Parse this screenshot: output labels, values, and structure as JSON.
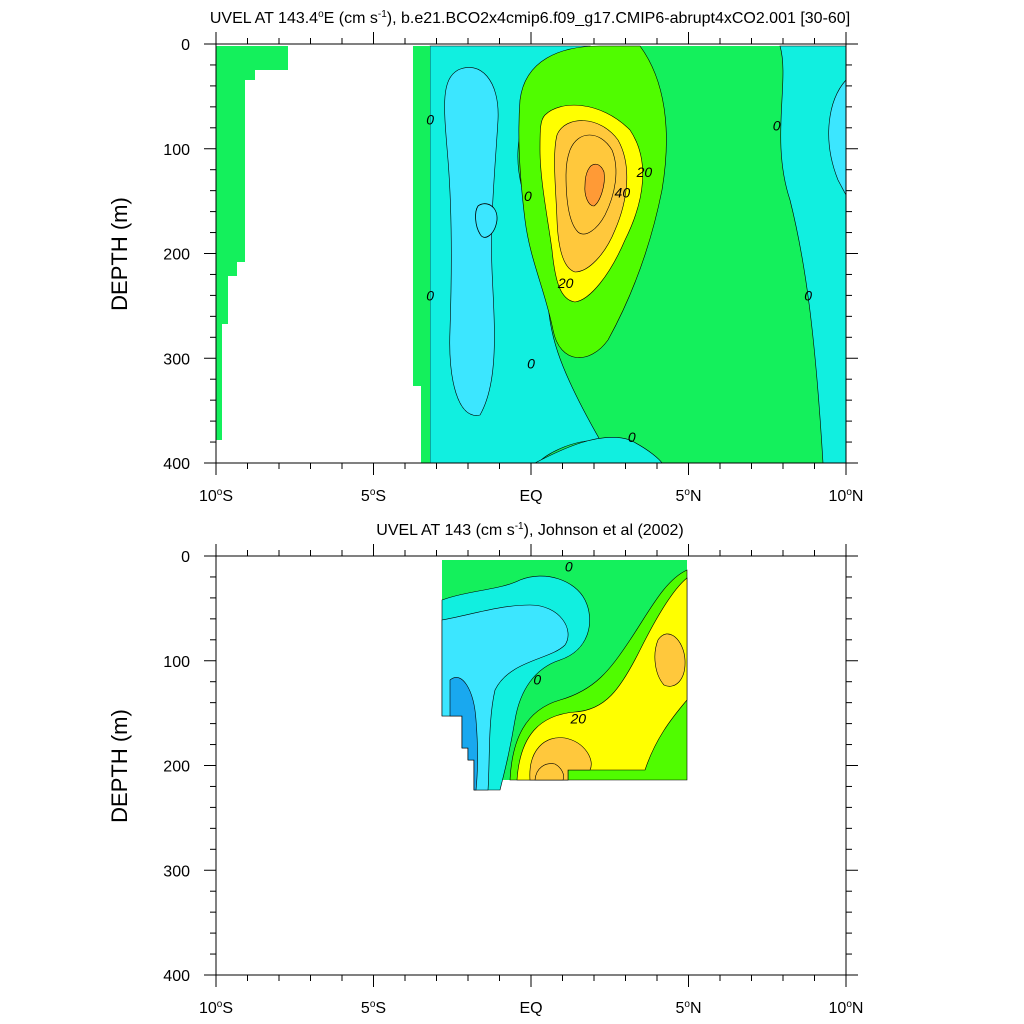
{
  "chart_data": [
    {
      "type": "contour",
      "title_parts": [
        "UVEL AT 143.4",
        "o",
        "E (cm s",
        "-1",
        "), b.e21.BCO2x4cmip6.f09_g17.CMIP6-abrupt4xCO2.001 [30-60]"
      ],
      "ylabel": "DEPTH (m)",
      "xlim": [
        -10,
        10
      ],
      "ylim": [
        0,
        400
      ],
      "y_inverted": true,
      "x_ticks": [
        {
          "value": -10,
          "label": "10",
          "sup": "o",
          "suffix": "S"
        },
        {
          "value": -5,
          "label": "5",
          "sup": "o",
          "suffix": "S"
        },
        {
          "value": 0,
          "label": "EQ",
          "sup": "",
          "suffix": ""
        },
        {
          "value": 5,
          "label": "5",
          "sup": "o",
          "suffix": "N"
        },
        {
          "value": 10,
          "label": "10",
          "sup": "o",
          "suffix": "N"
        }
      ],
      "y_ticks": [
        0,
        100,
        200,
        300,
        400
      ],
      "contour_levels": [
        -20,
        -10,
        0,
        10,
        20,
        30,
        40,
        50
      ],
      "contour_labels": [
        {
          "x": -3.2,
          "y": 72,
          "text": "0"
        },
        {
          "x": -3.2,
          "y": 240,
          "text": "0"
        },
        {
          "x": -0.1,
          "y": 145,
          "text": "0"
        },
        {
          "x": 0.0,
          "y": 305,
          "text": "0"
        },
        {
          "x": 3.2,
          "y": 375,
          "text": "0"
        },
        {
          "x": 7.8,
          "y": 78,
          "text": "0"
        },
        {
          "x": 8.8,
          "y": 240,
          "text": "0"
        },
        {
          "x": 3.6,
          "y": 122,
          "text": "20"
        },
        {
          "x": 1.1,
          "y": 228,
          "text": "20"
        },
        {
          "x": 2.9,
          "y": 142,
          "text": "40"
        }
      ],
      "field": {
        "description": "Zonal velocity section, eastward undercurrent core near 2N, 130-150 m",
        "core": {
          "lat": 2.0,
          "depth": 140,
          "value": 50
        }
      }
    },
    {
      "type": "contour",
      "title_parts": [
        "UVEL AT 143 (cm s",
        "-1",
        "), Johnson et al (2002)"
      ],
      "ylabel": "DEPTH (m)",
      "xlim": [
        -10,
        10
      ],
      "ylim": [
        0,
        400
      ],
      "y_inverted": true,
      "x_ticks": [
        {
          "value": -10,
          "label": "10",
          "sup": "o",
          "suffix": "S"
        },
        {
          "value": -5,
          "label": "5",
          "sup": "o",
          "suffix": "S"
        },
        {
          "value": 0,
          "label": "EQ",
          "sup": "",
          "suffix": ""
        },
        {
          "value": 5,
          "label": "5",
          "sup": "o",
          "suffix": "N"
        },
        {
          "value": 10,
          "label": "10",
          "sup": "o",
          "suffix": "N"
        }
      ],
      "y_ticks": [
        0,
        100,
        200,
        300,
        400
      ],
      "data_extent": {
        "lat": [
          -2.8,
          5.0
        ],
        "depth": [
          0,
          225
        ]
      },
      "contour_labels": [
        {
          "x": 1.2,
          "y": 10,
          "text": "0"
        },
        {
          "x": 0.2,
          "y": 118,
          "text": "0"
        },
        {
          "x": 1.5,
          "y": 155,
          "text": "20"
        }
      ],
      "field": {
        "description": "Observed zonal velocity, westward near 2S below 100 m, eastward 20-30 cm/s core near EQ-1N at 200 m"
      }
    }
  ],
  "colors": {
    "neg20": "#19a8ef",
    "neg10": "#3ce6ff",
    "neg0": "#11efe0",
    "pos0": "#14f05c",
    "pos10": "#50fc00",
    "pos20": "#ffff00",
    "pos30": "#ffc83c",
    "pos40": "#ff9a36",
    "land": "#ffffff"
  }
}
